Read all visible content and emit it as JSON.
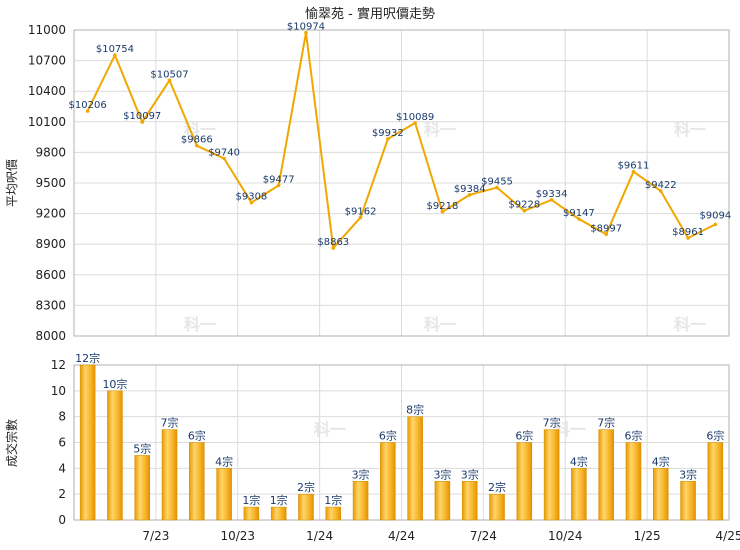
{
  "chart_data": [
    {
      "type": "line",
      "title": "愉翠苑 - 實用呎價走勢",
      "ylabel": "平均呎價",
      "ylim": [
        8000,
        11000
      ],
      "yticks": [
        8000,
        8300,
        8600,
        8900,
        9200,
        9500,
        9800,
        10100,
        10400,
        10700,
        11000
      ],
      "grid": true,
      "color": "#f0a800",
      "values": [
        10206,
        10754,
        10097,
        10507,
        9866,
        9740,
        9308,
        9477,
        10974,
        8863,
        9162,
        9932,
        10089,
        9218,
        9384,
        9455,
        9228,
        9334,
        9147,
        8997,
        9611,
        9422,
        8961,
        9094
      ],
      "labels": [
        "$10206",
        "$10754",
        "$10097",
        "$10507",
        "$9866",
        "$9740",
        "$9308",
        "$9477",
        "$10974",
        "$8863",
        "$9162",
        "$9932",
        "$10089",
        "$9218",
        "$9384",
        "$9455",
        "$9228",
        "$9334",
        "$9147",
        "$8997",
        "$9611",
        "$9422",
        "$8961",
        "$9094"
      ]
    },
    {
      "type": "bar",
      "ylabel": "成交宗數",
      "ylim": [
        0,
        12
      ],
      "yticks": [
        0,
        2,
        4,
        6,
        8,
        10,
        12
      ],
      "grid": true,
      "color": "#f2a81a",
      "values": [
        12,
        10,
        5,
        7,
        6,
        4,
        1,
        1,
        2,
        1,
        3,
        6,
        8,
        3,
        3,
        2,
        6,
        7,
        4,
        7,
        6,
        4,
        3,
        6
      ],
      "labels": [
        "12宗",
        "10宗",
        "5宗",
        "7宗",
        "6宗",
        "4宗",
        "1宗",
        "1宗",
        "2宗",
        "1宗",
        "3宗",
        "6宗",
        "8宗",
        "3宗",
        "3宗",
        "2宗",
        "6宗",
        "7宗",
        "4宗",
        "7宗",
        "6宗",
        "4宗",
        "3宗",
        "6宗"
      ],
      "x_ticks": [
        {
          "label": "7/23",
          "index": 2
        },
        {
          "label": "10/23",
          "index": 5
        },
        {
          "label": "1/24",
          "index": 8
        },
        {
          "label": "4/24",
          "index": 11
        },
        {
          "label": "7/24",
          "index": 14
        },
        {
          "label": "10/24",
          "index": 17
        },
        {
          "label": "1/25",
          "index": 20
        },
        {
          "label": "4/25",
          "index": 23
        }
      ]
    }
  ],
  "watermark": "科一"
}
